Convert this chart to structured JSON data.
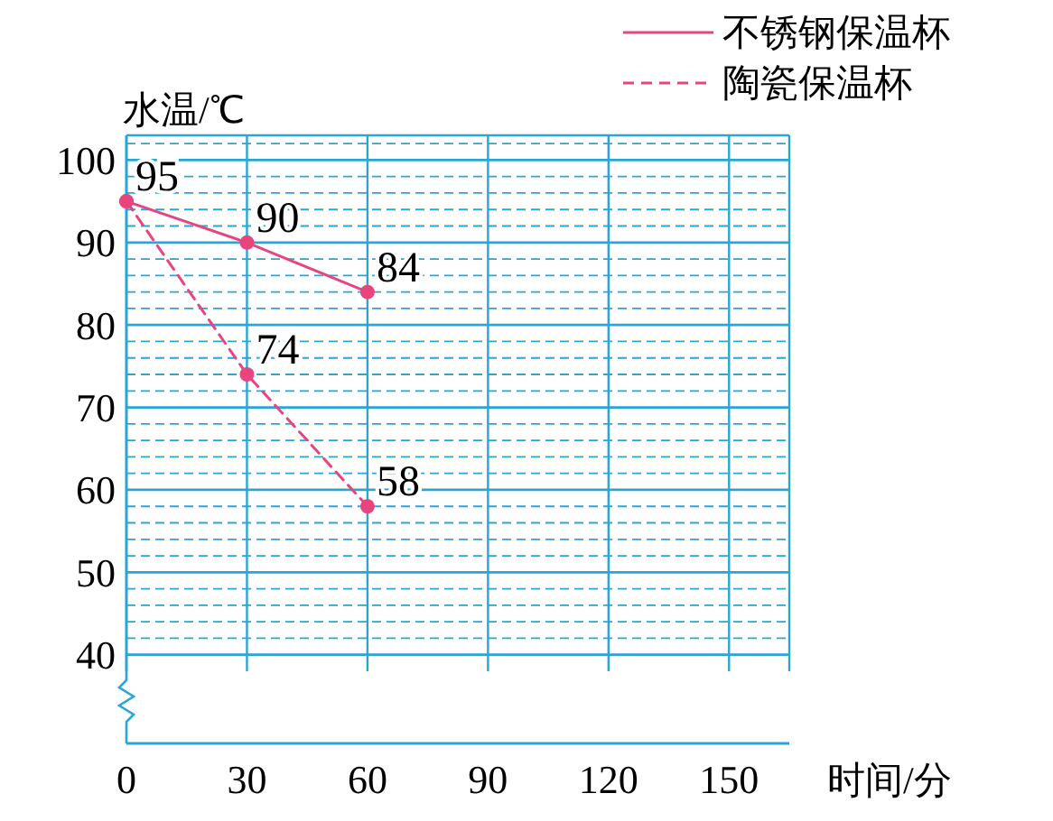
{
  "chart_data": {
    "type": "line",
    "xlabel": "时间/分",
    "ylabel": "水温/℃",
    "x": [
      0,
      30,
      60
    ],
    "series": [
      {
        "name": "不锈钢保温杯",
        "color": "#e8457f",
        "values": [
          95,
          90,
          84
        ],
        "line_style": "solid",
        "value_labels": [
          "95",
          "90",
          "84"
        ]
      },
      {
        "name": "陶瓷保温杯",
        "color": "#e8457f",
        "values": [
          95,
          74,
          58
        ],
        "line_style": "dashed",
        "value_labels": [
          null,
          "74",
          "58"
        ]
      }
    ],
    "xlim": [
      0,
      165
    ],
    "xticks": [
      0,
      30,
      60,
      90,
      120,
      150
    ],
    "ylim": [
      38,
      103
    ],
    "yticks": [
      40,
      {
        "value": 42,
        "label": null
      },
      {
        "value": 44,
        "label": null
      },
      {
        "value": 46,
        "label": null
      },
      {
        "value": 48,
        "label": null
      },
      50,
      {
        "value": 52,
        "label": null
      },
      {
        "value": 54,
        "label": null
      },
      {
        "value": 56,
        "label": null
      },
      {
        "value": 58,
        "label": null
      },
      60,
      {
        "value": 62,
        "label": null
      },
      {
        "value": 64,
        "label": null
      },
      {
        "value": 66,
        "label": null
      },
      {
        "value": 68,
        "label": null
      },
      70,
      {
        "value": 72,
        "label": null
      },
      {
        "value": 74,
        "label": null
      },
      {
        "value": 76,
        "label": null
      },
      {
        "value": 78,
        "label": null
      },
      80,
      {
        "value": 82,
        "label": null
      },
      {
        "value": 84,
        "label": null
      },
      {
        "value": 86,
        "label": null
      },
      {
        "value": 88,
        "label": null
      },
      90,
      {
        "value": 92,
        "label": null
      },
      {
        "value": 94,
        "label": null
      },
      {
        "value": 96,
        "label": null
      },
      {
        "value": 98,
        "label": null
      },
      100,
      {
        "value": 102,
        "label": null
      }
    ],
    "grid": true,
    "legend": "top right",
    "marker": "circle"
  }
}
